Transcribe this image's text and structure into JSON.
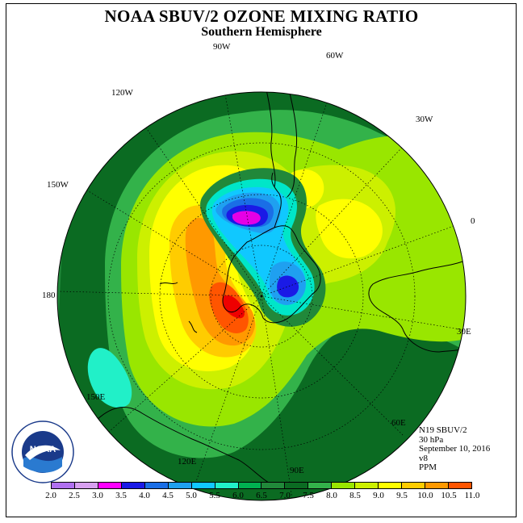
{
  "title": "NOAA SBUV/2 OZONE MIXING RATIO",
  "subtitle": "Southern Hemisphere",
  "lon_labels": {
    "90W": "90W",
    "60W": "60W",
    "30W": "30W",
    "0": "0",
    "30E": "30E",
    "60E": "60E",
    "90E": "90E",
    "120E": "120E",
    "150E": "150E",
    "180": "180",
    "150W": "150W",
    "120W": "120W"
  },
  "info": {
    "instrument": "N19 SBUV/2",
    "pressure": "30 hPa",
    "date": "September 10, 2016",
    "version": "v8",
    "units": "PPM"
  },
  "logo": {
    "text": "NOAA"
  },
  "colorbar": {
    "ticks": [
      "2.0",
      "2.5",
      "3.0",
      "3.5",
      "4.0",
      "4.5",
      "5.0",
      "5.5",
      "6.0",
      "6.5",
      "7.0",
      "7.5",
      "8.0",
      "8.5",
      "9.0",
      "9.5",
      "10.0",
      "10.5",
      "11.0"
    ],
    "colors": [
      "#b070f0",
      "#d8a0f0",
      "#ff00ff",
      "#1a1ae6",
      "#1a6ee6",
      "#1fa0f0",
      "#10c8ff",
      "#21f0c8",
      "#00b050",
      "#21883a",
      "#0b6b22",
      "#33b24a",
      "#99e600",
      "#ccf000",
      "#ffff00",
      "#ffcc00",
      "#ff9900",
      "#ff5500",
      "#ee0000",
      "#8a5a3a"
    ]
  }
}
